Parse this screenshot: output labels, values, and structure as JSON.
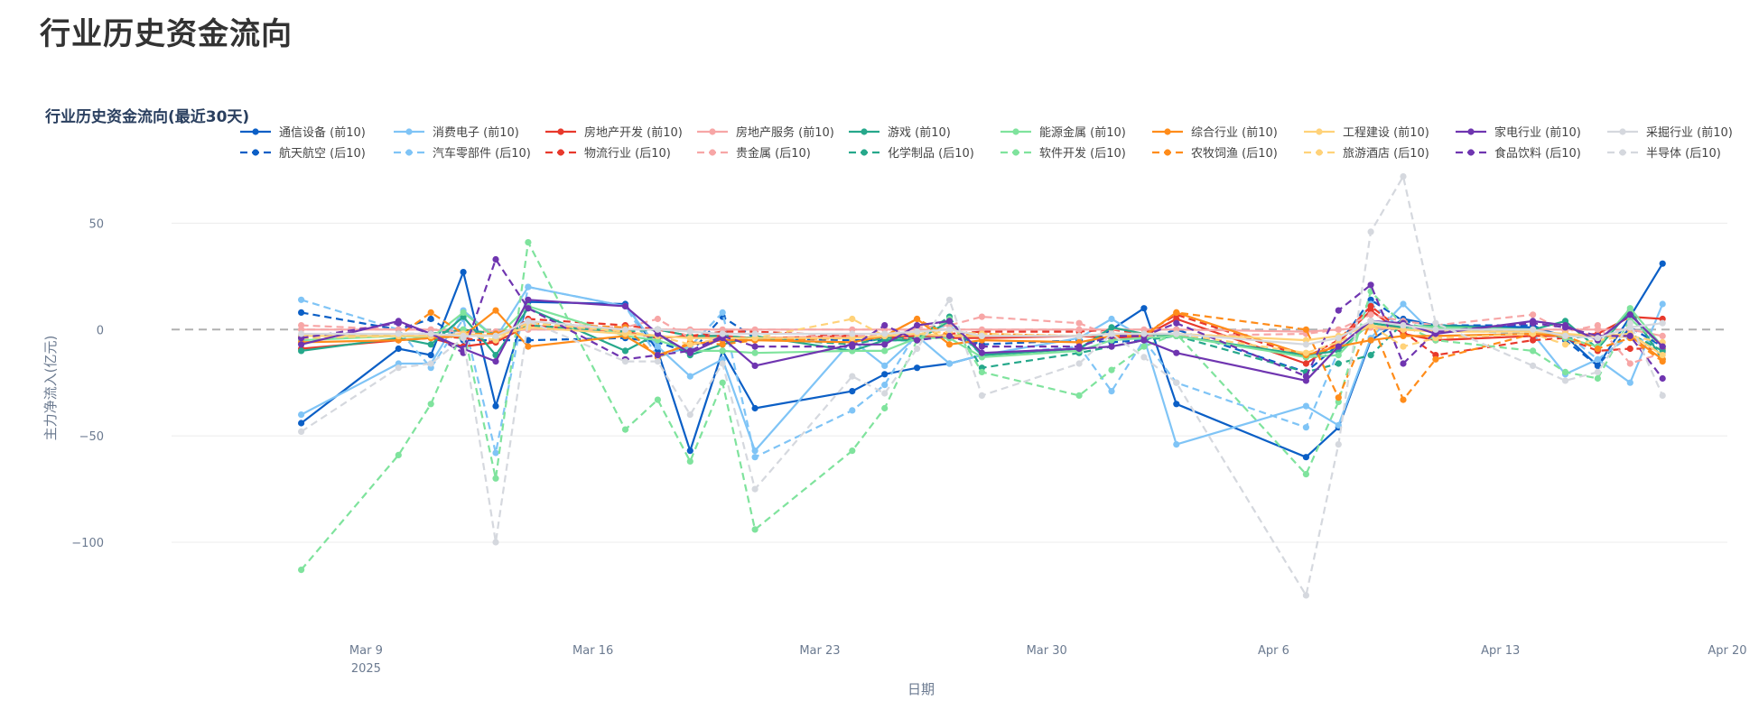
{
  "page": {
    "title": "行业历史资金流向"
  },
  "chart_data": {
    "type": "line",
    "title": "行业历史资金流向(最近30天)",
    "xlabel": "日期",
    "ylabel": "主力净流入(亿元)",
    "xlim": [
      "2025-03-03",
      "2025-04-20"
    ],
    "ylim": [
      -142,
      68
    ],
    "x_ticks": [
      {
        "date": "2025-03-09",
        "label": "Mar 9",
        "sublabel": "2025"
      },
      {
        "date": "2025-03-16",
        "label": "Mar 16"
      },
      {
        "date": "2025-03-23",
        "label": "Mar 23"
      },
      {
        "date": "2025-03-30",
        "label": "Mar 30"
      },
      {
        "date": "2025-04-06",
        "label": "Apr 6"
      },
      {
        "date": "2025-04-13",
        "label": "Apr 13"
      },
      {
        "date": "2025-04-20",
        "label": "Apr 20"
      }
    ],
    "y_ticks": [
      50,
      0,
      -50,
      -100
    ],
    "zero_line": "dashed",
    "grid": true,
    "legend_position": "top",
    "dates": [
      "2025-03-07",
      "2025-03-10",
      "2025-03-11",
      "2025-03-12",
      "2025-03-13",
      "2025-03-14",
      "2025-03-17",
      "2025-03-18",
      "2025-03-19",
      "2025-03-20",
      "2025-03-21",
      "2025-03-24",
      "2025-03-25",
      "2025-03-26",
      "2025-03-27",
      "2025-03-28",
      "2025-03-31",
      "2025-04-01",
      "2025-04-02",
      "2025-04-03",
      "2025-04-07",
      "2025-04-08",
      "2025-04-09",
      "2025-04-10",
      "2025-04-11",
      "2025-04-14",
      "2025-04-15",
      "2025-04-16",
      "2025-04-17",
      "2025-04-18"
    ],
    "series": [
      {
        "name": "通信设备 (前10)",
        "color": "#0b5fc6",
        "dash": "solid",
        "values": [
          -44,
          -9,
          -12,
          27,
          -36,
          13,
          12,
          -10,
          -57,
          -10,
          -37,
          -29,
          -21,
          -18,
          -16,
          -12,
          -9,
          0,
          10,
          -35,
          -60,
          -46,
          -5,
          5,
          2,
          1,
          -3,
          -17,
          6,
          31
        ]
      },
      {
        "name": "航天航空 (后10)",
        "color": "#0b5fc6",
        "dash": "dash",
        "values": [
          8,
          0,
          5,
          -5,
          -5,
          -5,
          -4,
          -6,
          -11,
          6,
          -4,
          -5,
          -5,
          -5,
          -3,
          -7,
          -5,
          -6,
          -5,
          0,
          -20,
          -7,
          14,
          4,
          2,
          2,
          -5,
          -17,
          1,
          -8
        ]
      },
      {
        "name": "消费电子 (前10)",
        "color": "#7fc4f6",
        "dash": "solid",
        "values": [
          -40,
          -16,
          -16,
          9,
          -4,
          20,
          11,
          -8,
          -22,
          -14,
          -57,
          -5,
          -17,
          -3,
          -16,
          -12,
          -4,
          5,
          -4,
          -54,
          -36,
          -45,
          -4,
          12,
          -3,
          -2,
          -21,
          -14,
          -25,
          12
        ]
      },
      {
        "name": "汽车零部件 (后10)",
        "color": "#7fc4f6",
        "dash": "dash",
        "values": [
          14,
          0,
          -18,
          5,
          -58,
          20,
          11,
          -13,
          -8,
          8,
          -60,
          -38,
          -26,
          -1,
          2,
          -12,
          -8,
          -29,
          -5,
          -25,
          -46,
          -10,
          12,
          0,
          0,
          -2,
          -2,
          -14,
          -3,
          -8
        ]
      },
      {
        "name": "房地产开发 (前10)",
        "color": "#e8392c",
        "dash": "solid",
        "values": [
          -9,
          -5,
          -4,
          -8,
          -6,
          2,
          -1,
          -4,
          -3,
          -3,
          -4,
          -3,
          -4,
          -3,
          -4,
          -4,
          -3,
          -4,
          -3,
          5,
          -16,
          -6,
          9,
          -2,
          -5,
          -3,
          -3,
          -2,
          6,
          5
        ]
      },
      {
        "name": "物流行业 (后10)",
        "color": "#e8392c",
        "dash": "dash",
        "values": [
          -4,
          -3,
          -3,
          -4,
          -6,
          5,
          2,
          0,
          -3,
          -1,
          -1,
          -3,
          -4,
          -5,
          -2,
          -1,
          -1,
          0,
          -2,
          7,
          -13,
          -5,
          11,
          -1,
          -12,
          -5,
          -4,
          -10,
          -9,
          -9
        ]
      },
      {
        "name": "房地产服务 (前10)",
        "color": "#f7a6a6",
        "dash": "solid",
        "values": [
          0,
          0,
          0,
          -1,
          -1,
          0,
          0,
          0,
          0,
          0,
          0,
          0,
          0,
          0,
          0,
          0,
          0,
          0,
          0,
          0,
          -1,
          0,
          1,
          0,
          0,
          0,
          0,
          0,
          0,
          -3
        ]
      },
      {
        "name": "贵金属 (后10)",
        "color": "#f7a6a6",
        "dash": "dash",
        "values": [
          2,
          0,
          0,
          -1,
          -1,
          1,
          1,
          5,
          -4,
          -4,
          -4,
          -3,
          -3,
          1,
          2,
          6,
          3,
          -3,
          -3,
          -3,
          -2,
          0,
          7,
          4,
          2,
          7,
          -1,
          2,
          -16,
          -11
        ]
      },
      {
        "name": "游戏 (前10)",
        "color": "#26a88b",
        "dash": "solid",
        "values": [
          -10,
          -4,
          -7,
          6,
          -12,
          10,
          -10,
          -2,
          -12,
          -7,
          -3,
          -10,
          -5,
          -5,
          4,
          -12,
          -9,
          1,
          -2,
          -3,
          -12,
          -10,
          3,
          1,
          2,
          0,
          4,
          -9,
          9,
          -14
        ]
      },
      {
        "name": "化学制品 (后10)",
        "color": "#26a88b",
        "dash": "dash",
        "values": [
          -3,
          -2,
          -2,
          0,
          -2,
          2,
          -1,
          0,
          -3,
          -3,
          -4,
          -7,
          -4,
          -4,
          6,
          -18,
          -11,
          -8,
          -5,
          -3,
          -20,
          -16,
          -12,
          3,
          0,
          0,
          -4,
          -3,
          -2,
          -10
        ]
      },
      {
        "name": "能源金属 (前10)",
        "color": "#7fe39d",
        "dash": "solid",
        "values": [
          -5,
          -3,
          -4,
          8,
          -4,
          11,
          -3,
          -5,
          -10,
          -10,
          -11,
          -10,
          -10,
          -4,
          -4,
          -13,
          -10,
          -5,
          -4,
          -3,
          -13,
          -12,
          4,
          2,
          1,
          0,
          -4,
          -8,
          10,
          -8
        ]
      },
      {
        "name": "软件开发 (后10)",
        "color": "#7fe39d",
        "dash": "dash",
        "values": [
          -113,
          -59,
          -35,
          0,
          -70,
          41,
          -47,
          -33,
          -62,
          -25,
          -94,
          -57,
          -37,
          -5,
          5,
          -20,
          -31,
          -19,
          -8,
          -2,
          -68,
          -34,
          18,
          2,
          -5,
          -10,
          -20,
          -23,
          5,
          -8
        ]
      },
      {
        "name": "综合行业 (前10)",
        "color": "#ff8c1a",
        "dash": "solid",
        "values": [
          -6,
          -5,
          -4,
          -3,
          9,
          -8,
          -3,
          -12,
          -7,
          -5,
          -5,
          -6,
          -3,
          5,
          -7,
          -5,
          -6,
          -3,
          -3,
          8,
          -12,
          -8,
          -5,
          -3,
          -3,
          -2,
          -3,
          -3,
          -3,
          -14
        ]
      },
      {
        "name": "农牧饲渔 (后10)",
        "color": "#ff8c1a",
        "dash": "dash",
        "values": [
          -3,
          -3,
          8,
          -2,
          -2,
          3,
          1,
          -13,
          -6,
          -7,
          -5,
          -4,
          -3,
          5,
          -3,
          -2,
          -3,
          -2,
          -3,
          8,
          0,
          -32,
          4,
          -33,
          -14,
          -2,
          -3,
          -9,
          -4,
          -15
        ]
      },
      {
        "name": "工程建设 (前10)",
        "color": "#ffd279",
        "dash": "solid",
        "values": [
          -3,
          -3,
          -3,
          -2,
          -3,
          1,
          -2,
          -3,
          -4,
          -4,
          -4,
          -4,
          -3,
          -2,
          -3,
          -3,
          -3,
          -2,
          -2,
          -2,
          -5,
          -3,
          2,
          0,
          -1,
          -1,
          -2,
          -3,
          -2,
          -12
        ]
      },
      {
        "name": "旅游酒店 (后10)",
        "color": "#ffd279",
        "dash": "dash",
        "values": [
          -4,
          -3,
          -3,
          -2,
          -5,
          3,
          -1,
          -3,
          -7,
          -4,
          -4,
          5,
          -3,
          -2,
          -1,
          -2,
          -3,
          -2,
          -2,
          -2,
          -11,
          -6,
          2,
          -8,
          -4,
          -2,
          -7,
          -5,
          -3,
          -6
        ]
      },
      {
        "name": "家电行业 (前10)",
        "color": "#6f35b0",
        "dash": "solid",
        "values": [
          -7,
          4,
          -2,
          -9,
          -15,
          14,
          11,
          -2,
          -11,
          -4,
          -17,
          -7,
          -7,
          2,
          4,
          -11,
          -9,
          -8,
          -5,
          -11,
          -24,
          -8,
          4,
          3,
          -2,
          4,
          2,
          -5,
          7,
          -8
        ]
      },
      {
        "name": "食品饮料 (后10)",
        "color": "#6f35b0",
        "dash": "dash",
        "values": [
          -4,
          3,
          -2,
          -11,
          33,
          10,
          -14,
          -12,
          -10,
          -3,
          -8,
          -8,
          2,
          -5,
          -3,
          -8,
          -8,
          -3,
          -3,
          3,
          -22,
          9,
          21,
          -16,
          -1,
          3,
          1,
          -3,
          -3,
          -23
        ]
      },
      {
        "name": "采掘行业 (前10)",
        "color": "#d5d8de",
        "dash": "solid",
        "values": [
          -2,
          -2,
          -2,
          -3,
          -3,
          4,
          0,
          0,
          -1,
          -2,
          -2,
          -2,
          -2,
          -1,
          0,
          -3,
          -3,
          -2,
          -2,
          -2,
          -7,
          -4,
          4,
          2,
          0,
          0,
          -3,
          -4,
          1,
          3
        ]
      },
      {
        "name": "半导体 (后10)",
        "color": "#d5d8de",
        "dash": "dash",
        "values": [
          -48,
          -18,
          -16,
          -4,
          -100,
          4,
          -15,
          -15,
          -40,
          -16,
          -75,
          -22,
          -30,
          -9,
          14,
          -31,
          -16,
          -2,
          -13,
          -25,
          -125,
          -54,
          46,
          72,
          3,
          -17,
          -24,
          -20,
          3,
          -31
        ]
      }
    ]
  }
}
